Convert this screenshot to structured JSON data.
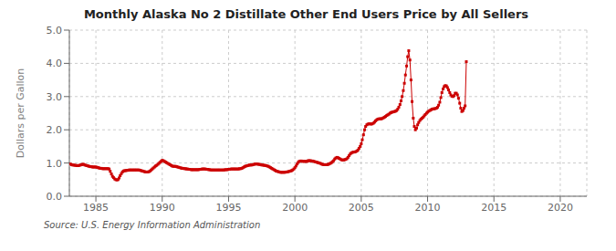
{
  "chart_data": {
    "type": "line",
    "title": "Monthly Alaska No 2 Distillate Other End Users Price by All Sellers",
    "ylabel": "Dollars per Gallon",
    "annotations": [
      "Source: U.S. Energy Information Administration"
    ],
    "color": "#cc0000",
    "marker": "square",
    "grid": true,
    "xlim": [
      1983,
      2022
    ],
    "ylim": [
      0.0,
      5.0
    ],
    "xticks": [
      1985,
      1990,
      1995,
      2000,
      2005,
      2010,
      2015,
      2020
    ],
    "yticks": [
      {
        "value": 0.0,
        "label": "0.0"
      },
      {
        "value": 1.0,
        "label": "1.0"
      },
      {
        "value": 2.0,
        "label": "2.0"
      },
      {
        "value": 3.0,
        "label": "3.0"
      },
      {
        "value": 4.0,
        "label": "4.0"
      },
      {
        "value": 5.0,
        "label": "5.0"
      }
    ],
    "x": [
      1983.08,
      1983.17,
      1983.25,
      1983.33,
      1983.42,
      1983.5,
      1983.58,
      1983.67,
      1983.75,
      1983.83,
      1983.92,
      1984.0,
      1984.08,
      1984.17,
      1984.25,
      1984.33,
      1984.42,
      1984.5,
      1984.58,
      1984.67,
      1984.75,
      1984.83,
      1984.92,
      1985.0,
      1985.08,
      1985.17,
      1985.25,
      1985.33,
      1985.42,
      1985.5,
      1985.58,
      1985.67,
      1985.75,
      1985.83,
      1985.92,
      1986.0,
      1986.08,
      1986.17,
      1986.25,
      1986.33,
      1986.42,
      1986.5,
      1986.58,
      1986.67,
      1986.75,
      1986.83,
      1986.92,
      1987.0,
      1987.08,
      1987.17,
      1987.25,
      1987.33,
      1987.42,
      1987.5,
      1987.58,
      1987.67,
      1987.75,
      1987.83,
      1987.92,
      1988.0,
      1988.08,
      1988.17,
      1988.25,
      1988.33,
      1988.42,
      1988.5,
      1988.58,
      1988.67,
      1988.75,
      1988.83,
      1988.92,
      1989.0,
      1989.08,
      1989.17,
      1989.25,
      1989.33,
      1989.42,
      1989.5,
      1989.58,
      1989.67,
      1989.75,
      1989.83,
      1989.92,
      1990.0,
      1990.08,
      1990.17,
      1990.25,
      1990.33,
      1990.42,
      1990.5,
      1990.58,
      1990.67,
      1990.75,
      1990.83,
      1990.92,
      1991.0,
      1991.08,
      1991.17,
      1991.25,
      1991.33,
      1991.42,
      1991.5,
      1991.58,
      1991.67,
      1991.75,
      1991.83,
      1991.92,
      1992.0,
      1992.08,
      1992.17,
      1992.25,
      1992.33,
      1992.42,
      1992.5,
      1992.58,
      1992.67,
      1992.75,
      1992.83,
      1992.92,
      1993.0,
      1993.08,
      1993.17,
      1993.25,
      1993.33,
      1993.42,
      1993.5,
      1993.58,
      1993.67,
      1993.75,
      1993.83,
      1993.92,
      1994.0,
      1994.08,
      1994.17,
      1994.25,
      1994.33,
      1994.42,
      1994.5,
      1994.58,
      1994.67,
      1994.75,
      1994.83,
      1994.92,
      1995.0,
      1995.08,
      1995.17,
      1995.25,
      1995.33,
      1995.42,
      1995.5,
      1995.58,
      1995.67,
      1995.75,
      1995.83,
      1995.92,
      1996.0,
      1996.08,
      1996.17,
      1996.25,
      1996.33,
      1996.42,
      1996.5,
      1996.58,
      1996.67,
      1996.75,
      1996.83,
      1996.92,
      1997.0,
      1997.08,
      1997.17,
      1997.25,
      1997.33,
      1997.42,
      1997.5,
      1997.58,
      1997.67,
      1997.75,
      1997.83,
      1997.92,
      1998.0,
      1998.08,
      1998.17,
      1998.25,
      1998.33,
      1998.42,
      1998.5,
      1998.58,
      1998.67,
      1998.75,
      1998.83,
      1998.92,
      1999.0,
      1999.08,
      1999.17,
      1999.25,
      1999.33,
      1999.42,
      1999.5,
      1999.58,
      1999.67,
      1999.75,
      1999.83,
      1999.92,
      2000.0,
      2000.08,
      2000.17,
      2000.25,
      2000.33,
      2000.42,
      2000.5,
      2000.58,
      2000.67,
      2000.75,
      2000.83,
      2000.92,
      2001.0,
      2001.08,
      2001.17,
      2001.25,
      2001.33,
      2001.42,
      2001.5,
      2001.58,
      2001.67,
      2001.75,
      2001.83,
      2001.92,
      2002.0,
      2002.08,
      2002.17,
      2002.25,
      2002.33,
      2002.42,
      2002.5,
      2002.58,
      2002.67,
      2002.75,
      2002.83,
      2002.92,
      2003.0,
      2003.08,
      2003.17,
      2003.25,
      2003.33,
      2003.42,
      2003.5,
      2003.58,
      2003.67,
      2003.75,
      2003.83,
      2003.92,
      2004.0,
      2004.08,
      2004.17,
      2004.25,
      2004.33,
      2004.42,
      2004.5,
      2004.58,
      2004.67,
      2004.75,
      2004.83,
      2004.92,
      2005.0,
      2005.08,
      2005.17,
      2005.25,
      2005.33,
      2005.42,
      2005.5,
      2005.58,
      2005.67,
      2005.75,
      2005.83,
      2005.92,
      2006.0,
      2006.08,
      2006.17,
      2006.25,
      2006.33,
      2006.42,
      2006.5,
      2006.58,
      2006.67,
      2006.75,
      2006.83,
      2006.92,
      2007.0,
      2007.08,
      2007.17,
      2007.25,
      2007.33,
      2007.42,
      2007.5,
      2007.58,
      2007.67,
      2007.75,
      2007.83,
      2007.92,
      2008.0,
      2008.08,
      2008.17,
      2008.25,
      2008.33,
      2008.42,
      2008.5,
      2008.58,
      2008.67,
      2008.75,
      2008.83,
      2008.92,
      2009.0,
      2009.08,
      2009.17,
      2009.25,
      2009.33,
      2009.42,
      2009.5,
      2009.58,
      2009.67,
      2009.75,
      2009.83,
      2009.92,
      2010.0,
      2010.08,
      2010.17,
      2010.25,
      2010.33,
      2010.42,
      2010.5,
      2010.58,
      2010.67,
      2010.75,
      2010.83,
      2010.92,
      2011.0,
      2011.08,
      2011.17,
      2011.25,
      2011.33,
      2011.42,
      2011.5,
      2011.58,
      2011.67,
      2011.75,
      2011.83,
      2011.92,
      2012.0,
      2012.08,
      2012.17,
      2012.25,
      2012.33,
      2012.42,
      2012.5,
      2012.58,
      2012.67,
      2012.75,
      2012.83,
      2012.92
    ],
    "values": [
      0.97,
      0.95,
      0.94,
      0.94,
      0.93,
      0.93,
      0.92,
      0.92,
      0.93,
      0.94,
      0.95,
      0.96,
      0.96,
      0.94,
      0.93,
      0.92,
      0.91,
      0.9,
      0.89,
      0.89,
      0.88,
      0.88,
      0.88,
      0.88,
      0.87,
      0.86,
      0.85,
      0.84,
      0.84,
      0.83,
      0.83,
      0.83,
      0.83,
      0.83,
      0.83,
      0.82,
      0.75,
      0.67,
      0.6,
      0.56,
      0.52,
      0.5,
      0.49,
      0.5,
      0.55,
      0.62,
      0.68,
      0.73,
      0.76,
      0.77,
      0.77,
      0.78,
      0.78,
      0.79,
      0.79,
      0.79,
      0.79,
      0.79,
      0.79,
      0.79,
      0.79,
      0.79,
      0.79,
      0.78,
      0.77,
      0.76,
      0.75,
      0.74,
      0.73,
      0.73,
      0.73,
      0.74,
      0.76,
      0.79,
      0.82,
      0.85,
      0.88,
      0.91,
      0.93,
      0.96,
      0.99,
      1.02,
      1.05,
      1.08,
      1.07,
      1.05,
      1.03,
      1.01,
      0.99,
      0.97,
      0.95,
      0.93,
      0.91,
      0.9,
      0.9,
      0.9,
      0.89,
      0.88,
      0.87,
      0.86,
      0.85,
      0.84,
      0.84,
      0.83,
      0.83,
      0.82,
      0.82,
      0.81,
      0.81,
      0.8,
      0.8,
      0.8,
      0.8,
      0.8,
      0.8,
      0.8,
      0.8,
      0.81,
      0.81,
      0.82,
      0.82,
      0.82,
      0.82,
      0.81,
      0.81,
      0.8,
      0.8,
      0.79,
      0.79,
      0.79,
      0.79,
      0.79,
      0.79,
      0.79,
      0.79,
      0.79,
      0.79,
      0.79,
      0.79,
      0.79,
      0.8,
      0.8,
      0.8,
      0.81,
      0.81,
      0.82,
      0.82,
      0.82,
      0.82,
      0.82,
      0.82,
      0.82,
      0.82,
      0.83,
      0.83,
      0.84,
      0.86,
      0.88,
      0.9,
      0.91,
      0.92,
      0.93,
      0.94,
      0.94,
      0.94,
      0.95,
      0.96,
      0.97,
      0.97,
      0.97,
      0.96,
      0.96,
      0.95,
      0.94,
      0.94,
      0.93,
      0.93,
      0.92,
      0.91,
      0.9,
      0.88,
      0.86,
      0.84,
      0.82,
      0.8,
      0.78,
      0.76,
      0.75,
      0.74,
      0.73,
      0.72,
      0.72,
      0.72,
      0.72,
      0.72,
      0.73,
      0.73,
      0.74,
      0.75,
      0.76,
      0.77,
      0.79,
      0.82,
      0.86,
      0.91,
      0.97,
      1.02,
      1.05,
      1.06,
      1.06,
      1.05,
      1.05,
      1.05,
      1.05,
      1.05,
      1.07,
      1.07,
      1.07,
      1.06,
      1.06,
      1.05,
      1.04,
      1.03,
      1.02,
      1.01,
      1.0,
      0.99,
      0.97,
      0.96,
      0.95,
      0.95,
      0.95,
      0.95,
      0.96,
      0.97,
      0.99,
      1.01,
      1.04,
      1.07,
      1.12,
      1.15,
      1.17,
      1.16,
      1.14,
      1.12,
      1.1,
      1.09,
      1.09,
      1.1,
      1.11,
      1.13,
      1.17,
      1.22,
      1.27,
      1.3,
      1.32,
      1.33,
      1.33,
      1.34,
      1.36,
      1.39,
      1.44,
      1.5,
      1.58,
      1.7,
      1.85,
      2.0,
      2.1,
      2.15,
      2.17,
      2.18,
      2.18,
      2.17,
      2.18,
      2.2,
      2.23,
      2.27,
      2.3,
      2.32,
      2.33,
      2.33,
      2.33,
      2.34,
      2.36,
      2.38,
      2.4,
      2.43,
      2.45,
      2.47,
      2.5,
      2.52,
      2.53,
      2.54,
      2.55,
      2.56,
      2.58,
      2.62,
      2.68,
      2.76,
      2.87,
      3.0,
      3.18,
      3.4,
      3.65,
      3.92,
      4.2,
      4.38,
      4.1,
      3.5,
      2.85,
      2.35,
      2.1,
      2.0,
      2.05,
      2.15,
      2.22,
      2.28,
      2.32,
      2.35,
      2.38,
      2.42,
      2.46,
      2.5,
      2.53,
      2.56,
      2.58,
      2.6,
      2.62,
      2.63,
      2.63,
      2.64,
      2.65,
      2.68,
      2.74,
      2.83,
      2.97,
      3.12,
      3.23,
      3.3,
      3.33,
      3.32,
      3.27,
      3.2,
      3.12,
      3.05,
      3.01,
      3.0,
      3.03,
      3.1,
      3.1,
      3.05,
      2.95,
      2.8,
      2.65,
      2.55,
      2.58,
      2.65,
      2.72,
      4.05
    ]
  }
}
